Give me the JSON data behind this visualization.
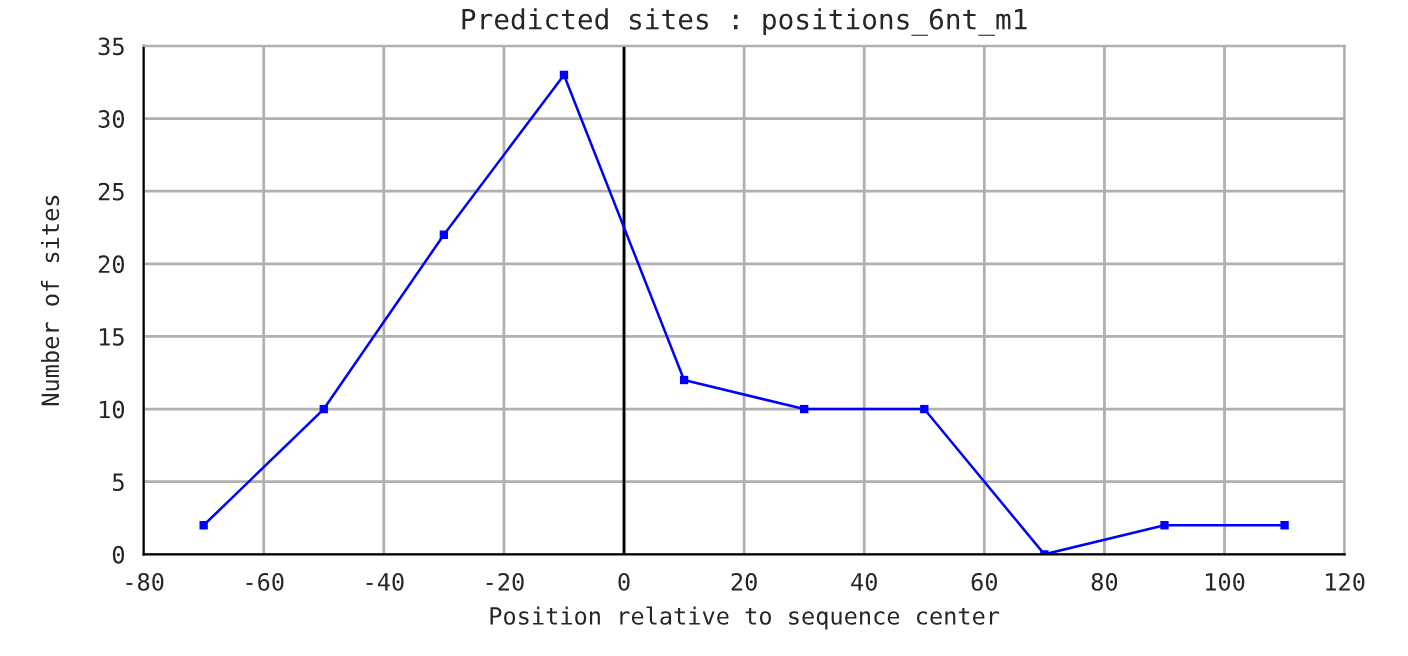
{
  "chart_data": {
    "type": "line",
    "title": "Predicted sites : positions_6nt_m1",
    "xlabel": "Position relative to sequence center",
    "ylabel": "Number of sites",
    "x": [
      -70,
      -50,
      -30,
      -10,
      10,
      30,
      50,
      70,
      90,
      110
    ],
    "series": [
      {
        "color": "#0000ff",
        "values": [
          2,
          10,
          22,
          33,
          12,
          10,
          10,
          0,
          2,
          2
        ]
      }
    ],
    "xlim": [
      -80,
      120
    ],
    "xticks": [
      -80,
      -60,
      -40,
      -20,
      0,
      20,
      40,
      60,
      80,
      100,
      120
    ],
    "ylim": [
      0,
      35
    ],
    "yticks": [
      0,
      5,
      10,
      15,
      20,
      25,
      30,
      35
    ],
    "ref_lines": [
      {
        "axis": "x",
        "value": 0,
        "color": "#000000"
      }
    ],
    "grid": true,
    "marker": "square",
    "line_style": "solid",
    "legend": false
  }
}
